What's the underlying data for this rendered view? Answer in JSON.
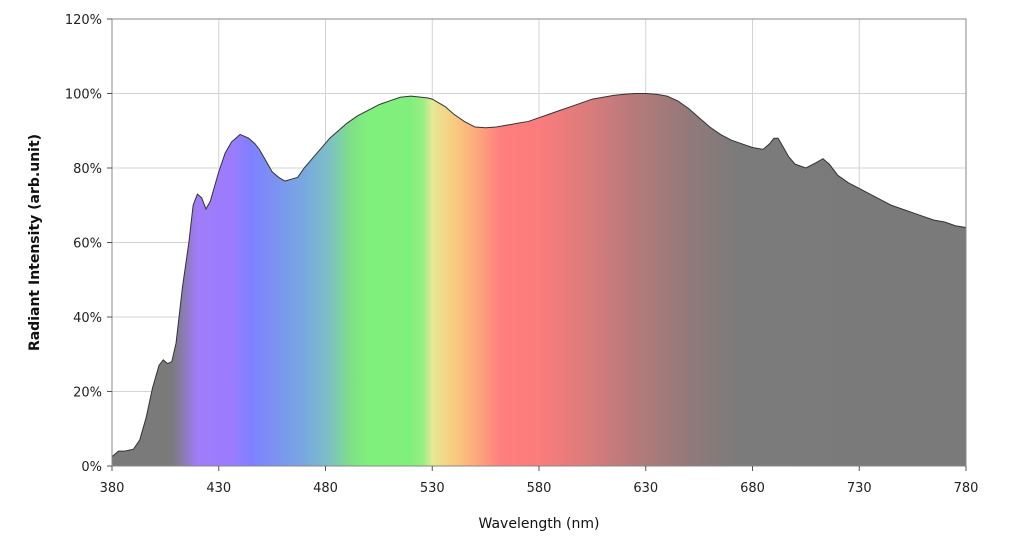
{
  "chart_data": {
    "type": "area",
    "xlabel": "Wavelength (nm)",
    "ylabel": "Radiant Intensity (arb.unit)",
    "xlim": [
      380,
      780
    ],
    "ylim": [
      0,
      120
    ],
    "x_ticks": [
      380,
      430,
      480,
      530,
      580,
      630,
      680,
      730,
      780
    ],
    "x_tick_labels": [
      "380",
      "430",
      "480",
      "530",
      "580",
      "630",
      "680",
      "730",
      "780"
    ],
    "y_ticks": [
      0,
      20,
      40,
      60,
      80,
      100,
      120
    ],
    "y_tick_labels": [
      "0%",
      "20%",
      "40%",
      "60%",
      "80%",
      "100%",
      "120%"
    ],
    "grid": true,
    "fill": "visible spectrum gradient",
    "series": [
      {
        "x": [
          380,
          383,
          386,
          390,
          393,
          396,
          399,
          402,
          404,
          406,
          408,
          410,
          413,
          416,
          418,
          420,
          422,
          424,
          426,
          428,
          430,
          433,
          436,
          440,
          444,
          447,
          449,
          452,
          455,
          458,
          461,
          464,
          467,
          470,
          473,
          476,
          479,
          482,
          486,
          490,
          495,
          500,
          505,
          510,
          515,
          520,
          525,
          528,
          530,
          533,
          536,
          540,
          545,
          550,
          555,
          560,
          565,
          570,
          575,
          580,
          585,
          590,
          595,
          600,
          605,
          610,
          615,
          620,
          625,
          630,
          635,
          640,
          645,
          650,
          655,
          660,
          665,
          670,
          675,
          680,
          685,
          688,
          690,
          692,
          694,
          697,
          700,
          705,
          710,
          713,
          716,
          720,
          725,
          730,
          735,
          740,
          745,
          750,
          755,
          760,
          765,
          770,
          775,
          780
        ],
        "values": [
          2.5,
          4,
          4,
          4.5,
          7,
          13,
          21,
          27,
          28.5,
          27.5,
          28,
          33,
          48,
          60,
          70,
          73,
          72,
          69,
          71,
          75,
          79,
          84,
          87,
          89,
          88,
          86.5,
          85,
          82,
          79,
          77.5,
          76.5,
          77,
          77.5,
          80,
          82,
          84,
          86,
          88,
          90,
          92,
          94,
          95.5,
          97,
          98,
          99,
          99.3,
          99,
          98.8,
          98.5,
          97.5,
          96.5,
          94.5,
          92.5,
          91,
          90.8,
          91,
          91.5,
          92,
          92.5,
          93.5,
          94.5,
          95.5,
          96.5,
          97.5,
          98.5,
          99,
          99.5,
          99.8,
          100,
          100,
          99.8,
          99.3,
          98,
          96,
          93.5,
          91,
          89,
          87.5,
          86.5,
          85.5,
          85,
          86.5,
          88,
          88,
          86,
          83,
          81,
          80,
          81.5,
          82.5,
          81,
          78,
          76,
          74.5,
          73,
          71.5,
          70,
          69,
          68,
          67,
          66,
          65.5,
          64.5,
          64
        ]
      }
    ]
  }
}
